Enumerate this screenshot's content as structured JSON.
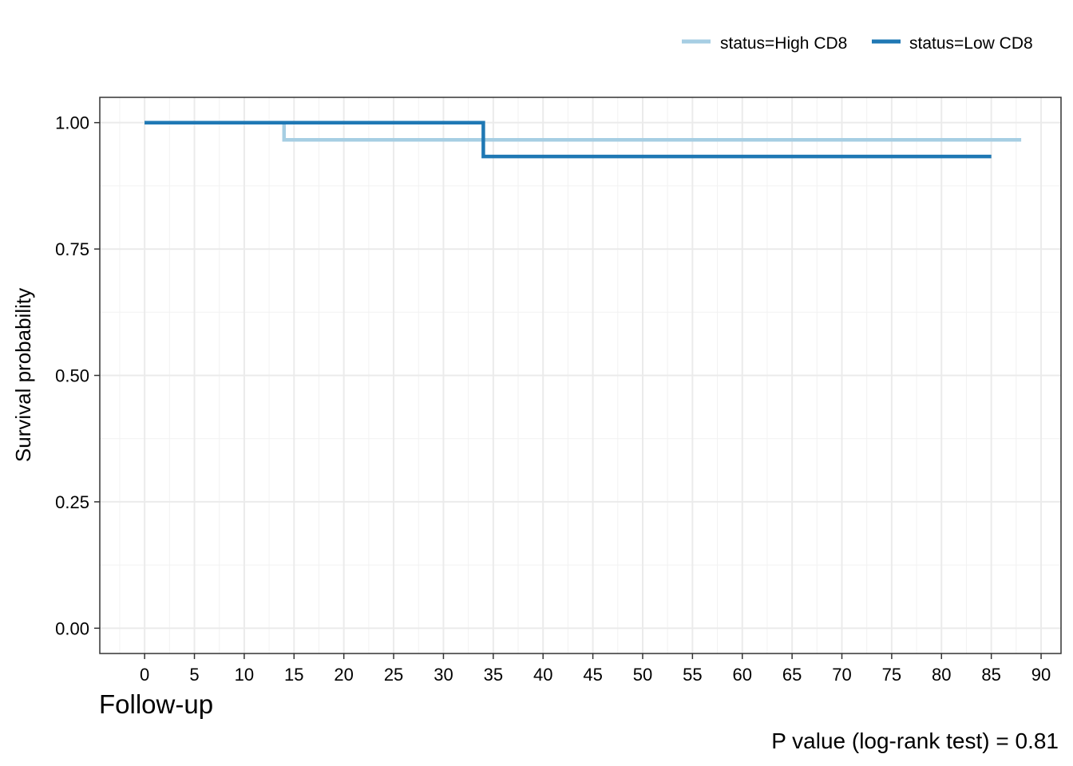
{
  "chart_data": {
    "type": "line",
    "subtype": "kaplan-meier step",
    "xlabel": "Follow-up",
    "ylabel": "Survival probability",
    "xlim": [
      -4.5,
      92
    ],
    "ylim": [
      -0.05,
      1.05
    ],
    "x_ticks": [
      0,
      5,
      10,
      15,
      20,
      25,
      30,
      35,
      40,
      45,
      50,
      55,
      60,
      65,
      70,
      75,
      80,
      85,
      90
    ],
    "x_tick_labels": [
      "0",
      "5",
      "10",
      "15",
      "20",
      "25",
      "30",
      "35",
      "40",
      "45",
      "50",
      "55",
      "60",
      "65",
      "70",
      "75",
      "80",
      "85",
      "90"
    ],
    "y_ticks": [
      0,
      0.25,
      0.5,
      0.75,
      1
    ],
    "y_tick_labels": [
      "0.00",
      "0.25",
      "0.50",
      "0.75",
      "1.00"
    ],
    "grid": true,
    "legend_position": "top-right",
    "series": [
      {
        "name": "status=High CD8",
        "color": "#a6cee3",
        "steps": [
          [
            0,
            1.0
          ],
          [
            14,
            1.0
          ],
          [
            14,
            0.966
          ],
          [
            88,
            0.966
          ]
        ]
      },
      {
        "name": "status=Low CD8",
        "color": "#1f78b4",
        "steps": [
          [
            0,
            1.0
          ],
          [
            34,
            1.0
          ],
          [
            34,
            0.933
          ],
          [
            85,
            0.933
          ]
        ]
      }
    ],
    "annotation": "P value (log-rank test) = 0.81"
  }
}
